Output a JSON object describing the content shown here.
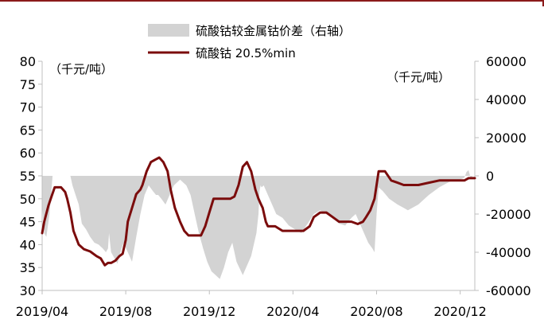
{
  "chart_data": {
    "type": "line",
    "legend": {
      "placement": "top-center",
      "entries": [
        "硫酸钴较金属钴价差（右轴）",
        "硫酸钴 20.5%min"
      ]
    },
    "left_unit": "（千元/吨）",
    "right_unit": "（千元/吨）",
    "y_left": {
      "ticks": [
        30,
        35,
        40,
        45,
        50,
        55,
        60,
        65,
        70,
        75,
        80
      ],
      "ylim": [
        30,
        80
      ]
    },
    "y_right": {
      "ticks": [
        -60000,
        -40000,
        -20000,
        0,
        20000,
        40000,
        60000
      ],
      "ylim": [
        -60000,
        60000
      ]
    },
    "x_ticks": [
      "2019/04",
      "2019/08",
      "2019/12",
      "2020/04",
      "2020/08",
      "2020/12"
    ],
    "x_tick_positions": [
      0,
      4,
      8,
      12,
      16,
      20
    ],
    "x_range": [
      0,
      20.7
    ],
    "grid": false,
    "colors": {
      "line": "#7b0c0c",
      "area": "#d3d3d3",
      "axis": "#bfbfbf",
      "brand": "#8b1a1a"
    },
    "series": [
      {
        "name": "硫酸钴较金属钴价差（右轴）",
        "kind": "area",
        "axis": "right",
        "x": [
          0,
          0.1,
          0.2,
          0.35,
          0.5,
          0.7,
          1.0,
          1.2,
          1.35,
          1.45,
          1.6,
          1.75,
          1.9,
          2.1,
          2.3,
          2.5,
          2.7,
          2.9,
          3.05,
          3.15,
          3.2,
          3.3,
          3.4,
          3.5,
          3.6,
          3.7,
          3.8,
          3.9,
          4.1,
          4.3,
          4.5,
          4.7,
          4.9,
          5.1,
          5.3,
          5.45,
          5.55,
          5.7,
          5.9,
          6.1,
          6.3,
          6.6,
          6.9,
          7.1,
          7.3,
          7.5,
          7.7,
          7.9,
          8.1,
          8.3,
          8.5,
          8.7,
          8.9,
          9.1,
          9.3,
          9.6,
          10.0,
          10.25,
          10.35,
          10.4,
          10.45,
          10.5,
          10.6,
          10.8,
          11.0,
          11.2,
          11.5,
          11.8,
          12.1,
          12.4,
          12.7,
          13.0,
          13.3,
          13.6,
          13.9,
          14.2,
          14.5,
          14.8,
          15.0,
          15.2,
          15.4,
          15.6,
          15.8,
          15.9,
          16.0,
          16.1,
          16.3,
          16.6,
          17.0,
          17.5,
          18.0,
          18.5,
          19.0,
          19.5,
          20.0,
          20.2,
          20.3,
          20.4,
          20.5,
          20.6,
          20.7
        ],
        "values": [
          -15000,
          -30000,
          -32000,
          -20000,
          0,
          0,
          0,
          0,
          0,
          -5000,
          -10000,
          -15000,
          -25000,
          -28000,
          -32000,
          -35000,
          -36000,
          -38000,
          -40000,
          -38000,
          -30000,
          -40000,
          -42000,
          -44000,
          -46000,
          -42000,
          -38000,
          -35000,
          -40000,
          -45000,
          -32000,
          -20000,
          -10000,
          -5000,
          -8000,
          -10000,
          -10000,
          -12000,
          -15000,
          -10000,
          -5000,
          -2000,
          -5000,
          -10000,
          -20000,
          -30000,
          -38000,
          -45000,
          -50000,
          -52000,
          -54000,
          -48000,
          -40000,
          -35000,
          -45000,
          -52000,
          -42000,
          -30000,
          -20000,
          -8000,
          -5000,
          -6000,
          -5000,
          -10000,
          -15000,
          -20000,
          -22000,
          -26000,
          -28000,
          -30000,
          -25000,
          -20000,
          -18000,
          -20000,
          -22000,
          -25000,
          -26000,
          -22000,
          -20000,
          -25000,
          -30000,
          -35000,
          -38000,
          -40000,
          -20000,
          -6000,
          -8000,
          -12000,
          -15000,
          -18000,
          -15000,
          -10000,
          -6000,
          -3000,
          -2000,
          -1000,
          2000,
          3000,
          -1000,
          0,
          0
        ]
      },
      {
        "name": "硫酸钴 20.5%min",
        "kind": "line",
        "axis": "left",
        "x": [
          0,
          0.1,
          0.3,
          0.45,
          0.6,
          0.9,
          1.1,
          1.2,
          1.35,
          1.5,
          1.75,
          2.0,
          2.3,
          2.6,
          2.8,
          3.0,
          3.15,
          3.3,
          3.5,
          3.7,
          3.85,
          4.0,
          4.1,
          4.3,
          4.5,
          4.7,
          4.8,
          5.0,
          5.2,
          5.4,
          5.6,
          5.8,
          6.0,
          6.15,
          6.35,
          6.6,
          6.8,
          7.0,
          7.2,
          7.4,
          7.6,
          7.8,
          8.0,
          8.2,
          8.4,
          8.6,
          8.8,
          9.0,
          9.2,
          9.4,
          9.6,
          9.8,
          10.0,
          10.2,
          10.35,
          10.45,
          10.55,
          10.7,
          10.8,
          10.95,
          11.15,
          11.5,
          11.8,
          12.2,
          12.5,
          12.8,
          13.0,
          13.3,
          13.6,
          13.9,
          14.2,
          14.5,
          14.8,
          15.1,
          15.35,
          15.5,
          15.7,
          15.9,
          16.1,
          16.4,
          16.7,
          17.0,
          17.3,
          17.6,
          18.0,
          18.5,
          19.0,
          19.5,
          20.0,
          20.2,
          20.4,
          20.55,
          20.7
        ],
        "values": [
          42.5,
          45,
          48.5,
          50.5,
          52.5,
          52.5,
          51.5,
          50,
          47,
          43,
          40,
          39,
          38.5,
          37.5,
          37,
          35.5,
          36,
          36,
          36.5,
          37.5,
          38,
          41,
          45,
          48,
          51,
          52,
          53,
          56,
          58,
          58.5,
          59,
          58,
          56,
          52,
          48,
          45,
          43,
          42,
          42,
          42,
          42,
          44,
          47,
          50,
          50,
          50,
          50,
          50,
          50.5,
          53,
          57,
          58,
          56,
          52,
          50,
          49,
          48,
          45,
          44,
          44,
          44,
          43,
          43,
          43,
          43,
          44,
          46,
          47,
          47,
          46,
          45,
          45,
          45,
          44.5,
          45,
          46,
          47.5,
          50,
          56,
          56,
          54,
          53.5,
          53,
          53,
          53,
          53.5,
          54,
          54,
          54,
          54,
          54.5,
          54.5,
          54.5
        ]
      }
    ]
  }
}
